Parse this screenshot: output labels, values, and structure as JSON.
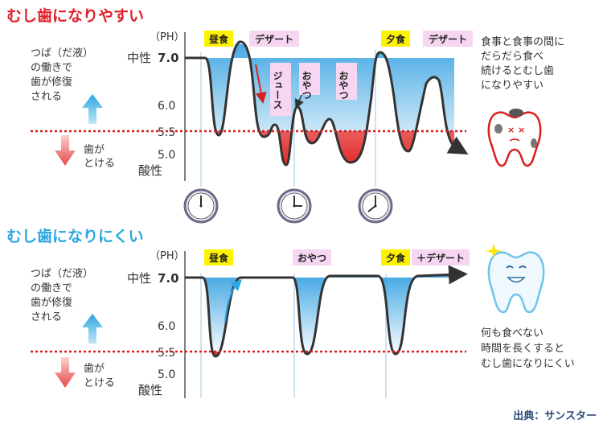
{
  "top": {
    "title": "むし歯になりやすい",
    "ph_label": "（PH）",
    "neutral": "中性",
    "acidic": "酸性",
    "ticks": [
      "7.0",
      "6.0",
      "5.5",
      "5.0"
    ],
    "repair_lines": [
      "つば（だ液）",
      "の働きで",
      "歯が修復",
      "される"
    ],
    "melt_lines": [
      "歯が",
      "とける"
    ],
    "events": [
      {
        "label": "昼食",
        "kind": "meal",
        "orient": "h"
      },
      {
        "label": "デザート",
        "kind": "snack",
        "orient": "h"
      },
      {
        "label": "ジュース",
        "kind": "snack",
        "orient": "v"
      },
      {
        "label": "おやつ",
        "kind": "snack",
        "orient": "v"
      },
      {
        "label": "おやつ",
        "kind": "snack",
        "orient": "v"
      },
      {
        "label": "夕食",
        "kind": "meal",
        "orient": "h"
      },
      {
        "label": "デザート",
        "kind": "snack",
        "orient": "h"
      }
    ],
    "note_lines": [
      "食事と食事の間に",
      "だらだら食べ",
      "続けるとむし歯",
      "になりやすい"
    ]
  },
  "bottom": {
    "title": "むし歯になりにくい",
    "ph_label": "（PH）",
    "neutral": "中性",
    "acidic": "酸性",
    "ticks": [
      "7.0",
      "6.0",
      "5.5",
      "5.0"
    ],
    "repair_lines": [
      "つば（だ液）",
      "の働きで",
      "歯が修復",
      "される"
    ],
    "melt_lines": [
      "歯が",
      "とける"
    ],
    "events": [
      {
        "label": "昼食",
        "kind": "meal",
        "orient": "h"
      },
      {
        "label": "おやつ",
        "kind": "snack",
        "orient": "h"
      },
      {
        "label": "夕食",
        "kind": "meal",
        "orient": "h"
      },
      {
        "label": "＋デザート",
        "kind": "snack",
        "orient": "h"
      }
    ],
    "note_lines": [
      "何も食べない",
      "時間を長くすると",
      "むし歯になりにくい"
    ]
  },
  "source": "出典：サンスター",
  "colors": {
    "title_red": "#e0202a",
    "title_blue": "#2aa6e0",
    "meal": "#fff200",
    "snack": "#f7d6f2",
    "threshold": "#d81e1e"
  }
}
